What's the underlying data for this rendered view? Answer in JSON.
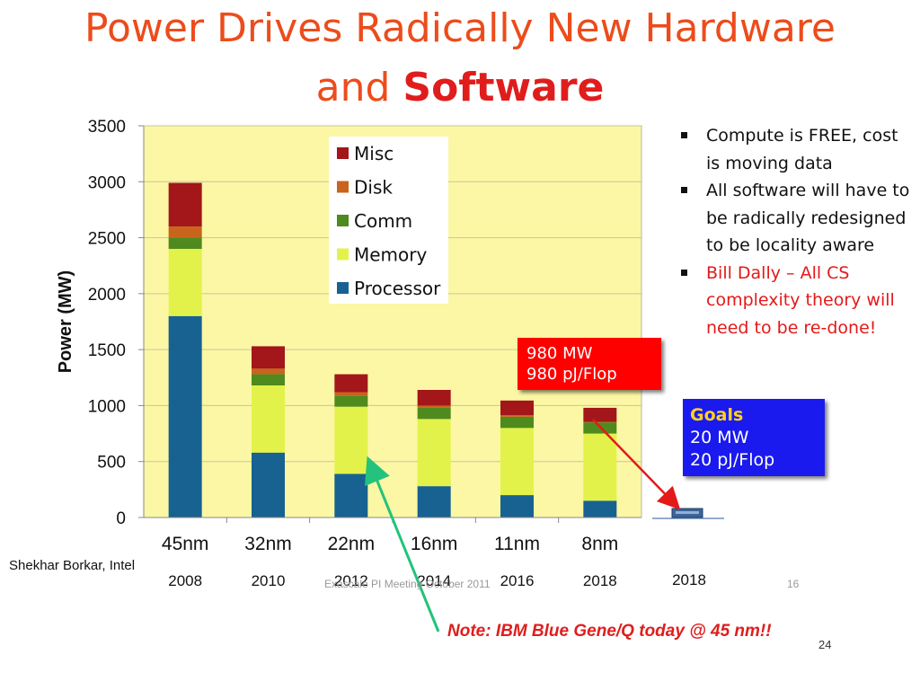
{
  "slide": {
    "title_line1": "Power Drives Radically New Hardware",
    "title_line2_a": "and",
    "title_line2_b": "Software",
    "bullets": [
      {
        "text": "Compute is FREE, cost is moving data",
        "color": "#111111"
      },
      {
        "text": "All software will have to be radically redesigned to be locality aware",
        "color": "#111111"
      },
      {
        "text": "Bill Dally – All CS complexity theory will need to be re-done!",
        "color": "#e31a1a"
      }
    ],
    "callout_red": {
      "line1": "980 MW",
      "line2": "980 pJ/Flop"
    },
    "callout_blue": {
      "heading": "Goals",
      "line1": "20 MW",
      "line2": "20 pJ/Flop"
    },
    "credit": "Shekhar Borkar, Intel",
    "footer_event": "Exascale PI Meeting  October 2011",
    "footer_page": "16",
    "note": "Note: IBM Blue Gene/Q today @ 45 nm!!",
    "page_number": "24"
  },
  "chart_data": {
    "type": "bar",
    "stacked": true,
    "ylabel": "Power (MW)",
    "ylim": [
      0,
      3500
    ],
    "yticks": [
      0,
      500,
      1000,
      1500,
      2000,
      2500,
      3000,
      3500
    ],
    "categories": [
      "45nm",
      "32nm",
      "22nm",
      "16nm",
      "11nm",
      "8nm"
    ],
    "years": [
      "2008",
      "2010",
      "2012",
      "2014",
      "2016",
      "2018"
    ],
    "series": [
      {
        "name": "Processor",
        "color": "#176291",
        "values": [
          1800,
          580,
          390,
          280,
          200,
          150
        ]
      },
      {
        "name": "Memory",
        "color": "#e3f24a",
        "values": [
          600,
          600,
          600,
          600,
          600,
          600
        ]
      },
      {
        "name": "Comm",
        "color": "#4e8a1d",
        "values": [
          100,
          100,
          100,
          100,
          100,
          100
        ]
      },
      {
        "name": "Disk",
        "color": "#c8641c",
        "values": [
          100,
          50,
          30,
          20,
          15,
          5
        ]
      },
      {
        "name": "Misc",
        "color": "#a3161a",
        "values": [
          390,
          200,
          160,
          140,
          130,
          125
        ]
      }
    ],
    "legend_order": [
      "Misc",
      "Disk",
      "Comm",
      "Memory",
      "Processor"
    ],
    "legend_position": "top-center",
    "plot_background": "#fbf7a4",
    "goal_bar": {
      "category": "",
      "year": "2018",
      "value": 20
    }
  }
}
